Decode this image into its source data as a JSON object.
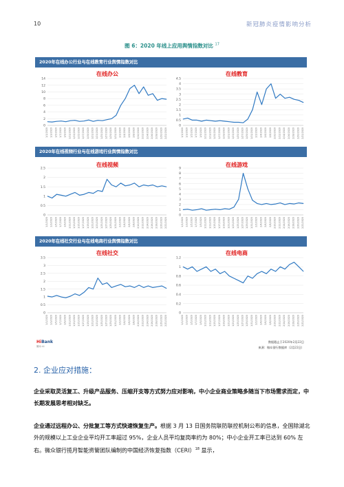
{
  "page_number": "10",
  "running_header": "新冠肺炎疫情影响分析",
  "figure_title": "图 6：2020 年线上应用舆情指数对比",
  "figure_ref": "17",
  "rows": [
    {
      "title": "2020年在线办公行业与在线教育行业舆情指数对比"
    },
    {
      "title": "2020年在线视频行业与在线游戏行业舆情指数对比"
    },
    {
      "title": "2020年在线社交行业与在线电商行业舆情指数对比"
    }
  ],
  "chart_data": [
    {
      "type": "line",
      "label": "在线办公",
      "ylim": [
        0,
        14
      ],
      "yticks": [
        "0",
        "2",
        "4",
        "6",
        "8",
        "10",
        "12",
        "14"
      ],
      "x": [
        "1/1/2020",
        "1/3/2020",
        "1/5/2020",
        "1/7/2020",
        "1/9/2020",
        "1/11/2020",
        "1/13/2020",
        "1/15/2020",
        "1/17/2020",
        "1/19/2020",
        "1/21/2020",
        "1/23/2020",
        "1/25/2020",
        "1/27/2020",
        "1/29/2020",
        "1/31/2020",
        "2/2/2020",
        "2/4/2020",
        "2/6/2020",
        "2/8/2020",
        "2/10/2020",
        "2/12/2020",
        "2/14/2020",
        "2/16/2020",
        "2/18/2020",
        "2/20/2020",
        "2/22/2020"
      ],
      "values": [
        1.1,
        1.0,
        1.2,
        1.3,
        1.1,
        1.4,
        1.5,
        1.2,
        1.3,
        1.6,
        1.2,
        1.5,
        1.4,
        1.7,
        2.0,
        3.0,
        6.0,
        8.0,
        11.0,
        12.0,
        9.5,
        11.5,
        9.0,
        9.5,
        7.5,
        8.0,
        7.8
      ],
      "color": "#2e78c2"
    },
    {
      "type": "line",
      "label": "在线教育",
      "ylim": [
        0,
        4.5
      ],
      "yticks": [
        "0",
        "0.5",
        "1",
        "1.5",
        "2",
        "2.5",
        "3",
        "3.5",
        "4",
        "4.5"
      ],
      "x": [
        "1/1/2020",
        "1/3/2020",
        "1/5/2020",
        "1/7/2020",
        "1/9/2020",
        "1/11/2020",
        "1/13/2020",
        "1/15/2020",
        "1/17/2020",
        "1/19/2020",
        "1/21/2020",
        "1/23/2020",
        "1/25/2020",
        "1/27/2020",
        "1/29/2020",
        "1/31/2020",
        "2/2/2020",
        "2/4/2020",
        "2/6/2020",
        "2/8/2020",
        "2/10/2020",
        "2/12/2020",
        "2/14/2020",
        "2/16/2020",
        "2/18/2020",
        "2/20/2020",
        "2/22/2020"
      ],
      "values": [
        0.6,
        0.7,
        0.5,
        0.5,
        0.4,
        0.5,
        0.45,
        0.4,
        0.45,
        0.4,
        0.35,
        0.3,
        0.3,
        0.25,
        0.6,
        1.5,
        3.2,
        2.0,
        3.5,
        4.0,
        2.6,
        3.0,
        2.6,
        2.7,
        2.5,
        2.4,
        2.2
      ],
      "color": "#2e78c2"
    },
    {
      "type": "line",
      "label": "在线视频",
      "ylim": [
        0,
        2.5
      ],
      "yticks": [
        "0",
        "0.5",
        "1",
        "1.5",
        "2",
        "2.5"
      ],
      "x": [
        "1/1/2020",
        "1/3/2020",
        "1/5/2020",
        "1/7/2020",
        "1/9/2020",
        "1/11/2020",
        "1/13/2020",
        "1/15/2020",
        "1/17/2020",
        "1/19/2020",
        "1/21/2020",
        "1/23/2020",
        "1/25/2020",
        "1/27/2020",
        "1/29/2020",
        "1/31/2020",
        "2/2/2020",
        "2/4/2020",
        "2/6/2020",
        "2/8/2020",
        "2/10/2020",
        "2/12/2020",
        "2/14/2020",
        "2/16/2020",
        "2/18/2020",
        "2/20/2020",
        "2/22/2020"
      ],
      "values": [
        1.0,
        0.9,
        1.1,
        1.05,
        1.0,
        1.1,
        1.2,
        1.05,
        1.1,
        1.2,
        1.15,
        1.3,
        1.25,
        1.9,
        1.6,
        1.5,
        1.7,
        1.55,
        1.6,
        1.7,
        1.5,
        1.6,
        1.55,
        1.6,
        1.5,
        1.55,
        1.5
      ],
      "color": "#2e78c2"
    },
    {
      "type": "line",
      "label": "在线游戏",
      "ylim": [
        0,
        9
      ],
      "yticks": [
        "0",
        "1",
        "2",
        "3",
        "4",
        "5",
        "6",
        "7",
        "8",
        "9"
      ],
      "x": [
        "1/1/2020",
        "1/3/2020",
        "1/5/2020",
        "1/7/2020",
        "1/9/2020",
        "1/11/2020",
        "1/13/2020",
        "1/15/2020",
        "1/17/2020",
        "1/19/2020",
        "1/21/2020",
        "1/23/2020",
        "1/25/2020",
        "1/27/2020",
        "1/29/2020",
        "1/31/2020",
        "2/2/2020",
        "2/4/2020",
        "2/6/2020",
        "2/8/2020",
        "2/10/2020",
        "2/12/2020",
        "2/14/2020",
        "2/16/2020",
        "2/18/2020",
        "2/20/2020",
        "2/22/2020"
      ],
      "values": [
        1.0,
        1.1,
        0.9,
        1.0,
        1.2,
        0.9,
        1.0,
        1.1,
        1.0,
        1.2,
        1.1,
        1.5,
        3.0,
        8.0,
        5.0,
        2.8,
        2.2,
        2.0,
        2.2,
        2.0,
        2.1,
        2.3,
        2.0,
        2.2,
        2.1,
        2.3,
        2.2
      ],
      "color": "#2e78c2"
    },
    {
      "type": "line",
      "label": "在线社交",
      "ylim": [
        0,
        3.5
      ],
      "yticks": [
        "0",
        "0.5",
        "1",
        "1.5",
        "2",
        "2.5",
        "3",
        "3.5"
      ],
      "x": [
        "1/1/2020",
        "1/3/2020",
        "1/5/2020",
        "1/7/2020",
        "1/9/2020",
        "1/11/2020",
        "1/13/2020",
        "1/15/2020",
        "1/17/2020",
        "1/19/2020",
        "1/21/2020",
        "1/23/2020",
        "1/25/2020",
        "1/27/2020",
        "1/29/2020",
        "1/31/2020",
        "2/2/2020",
        "2/4/2020",
        "2/6/2020",
        "2/8/2020",
        "2/10/2020",
        "2/12/2020",
        "2/14/2020",
        "2/16/2020",
        "2/18/2020",
        "2/20/2020",
        "2/22/2020"
      ],
      "values": [
        1.05,
        1.0,
        1.1,
        1.0,
        0.95,
        1.05,
        1.2,
        1.1,
        1.3,
        1.6,
        1.5,
        2.2,
        1.8,
        1.9,
        1.6,
        1.7,
        1.8,
        1.65,
        1.7,
        1.6,
        1.75,
        1.6,
        1.7,
        1.6,
        1.65,
        1.7,
        1.55
      ],
      "color": "#2e78c2"
    },
    {
      "type": "line",
      "label": "在线电商",
      "ylim": [
        0,
        1.2
      ],
      "yticks": [
        "0",
        "0.2",
        "0.4",
        "0.6",
        "0.8",
        "1",
        "1.2"
      ],
      "x": [
        "1/1/2020",
        "1/3/2020",
        "1/5/2020",
        "1/7/2020",
        "1/9/2020",
        "1/11/2020",
        "1/13/2020",
        "1/15/2020",
        "1/17/2020",
        "1/19/2020",
        "1/21/2020",
        "1/23/2020",
        "1/25/2020",
        "1/27/2020",
        "1/29/2020",
        "1/31/2020",
        "2/2/2020",
        "2/4/2020",
        "2/6/2020",
        "2/8/2020",
        "2/10/2020",
        "2/12/2020",
        "2/14/2020",
        "2/16/2020",
        "2/18/2020",
        "2/20/2020",
        "2/22/2020"
      ],
      "values": [
        1.0,
        0.95,
        1.0,
        0.9,
        0.95,
        1.0,
        0.9,
        0.95,
        0.85,
        0.9,
        0.8,
        0.75,
        0.7,
        0.65,
        0.8,
        0.75,
        0.85,
        0.9,
        0.85,
        0.95,
        0.9,
        1.0,
        0.95,
        1.05,
        1.1,
        1.0,
        0.9
      ],
      "color": "#2e78c2"
    }
  ],
  "logo": {
    "brand_a": "Hi",
    "brand_b": "Bank",
    "sub": "微众·AI"
  },
  "source": {
    "line1": "数据截止于2020年2月22日",
    "line2": "来源：微众银行数据库（2月22日）"
  },
  "section_heading": "2. 企业应对措施：",
  "para1": "企业采取灵活复工、升级产品服务、压缩开支等方式努力应对影响，中小企业商业策略多随当下市场需求而定，中长期发展思考相对缺乏。",
  "para2_bold": "企业通过远程办公、分批复工等方式快速恢复生产。",
  "para2_rest": "根据 3 月 13 日国务院联防联控机制公布的信息，全国除湖北外的规模以上工业企业平均开工率超过 95%，企业人员平均复岗率约为 80%；中小企业开工率已达到 60% 左右。微众银行揽月智能资管团队编制的中国经济恢复指数（CERI）",
  "para2_ref": "18",
  "para2_end": " 显示，"
}
